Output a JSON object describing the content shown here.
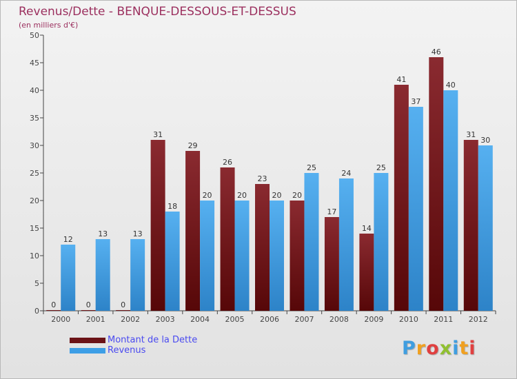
{
  "header": {
    "title": "Revenus/Dette - BENQUE-DESSOUS-ET-DESSUS",
    "subtitle": "(en milliers d'€)"
  },
  "chart_data": {
    "type": "bar",
    "categories": [
      "2000",
      "2001",
      "2002",
      "2003",
      "2004",
      "2005",
      "2006",
      "2007",
      "2008",
      "2009",
      "2010",
      "2011",
      "2012"
    ],
    "series": [
      {
        "name": "Montant de la Dette",
        "values": [
          0,
          0,
          0,
          31,
          29,
          26,
          23,
          20,
          17,
          14,
          41,
          46,
          31
        ]
      },
      {
        "name": "Revenus",
        "values": [
          12,
          13,
          13,
          18,
          20,
          20,
          20,
          25,
          24,
          25,
          37,
          40,
          30
        ]
      }
    ],
    "ylim": [
      0,
      50
    ],
    "yticks": [
      0,
      5,
      10,
      15,
      20,
      25,
      30,
      35,
      40,
      45,
      50
    ],
    "grid": false,
    "legend_position": "bottom-left",
    "colors": {
      "debt": "#7d1f24",
      "revenue": "#3d9ee6"
    }
  },
  "legend": {
    "items": [
      {
        "label": "Montant de la Dette",
        "color": "#6b1216"
      },
      {
        "label": "Revenus",
        "color": "#3d9ee6"
      }
    ]
  },
  "branding": {
    "logo": [
      "P",
      "r",
      "o",
      "x",
      "i",
      "t",
      "i"
    ],
    "logo_colors": [
      "#3f9ee0",
      "#f0a020",
      "#e04040",
      "#90c030",
      "#3f9ee0",
      "#f0a020",
      "#e04040"
    ]
  }
}
